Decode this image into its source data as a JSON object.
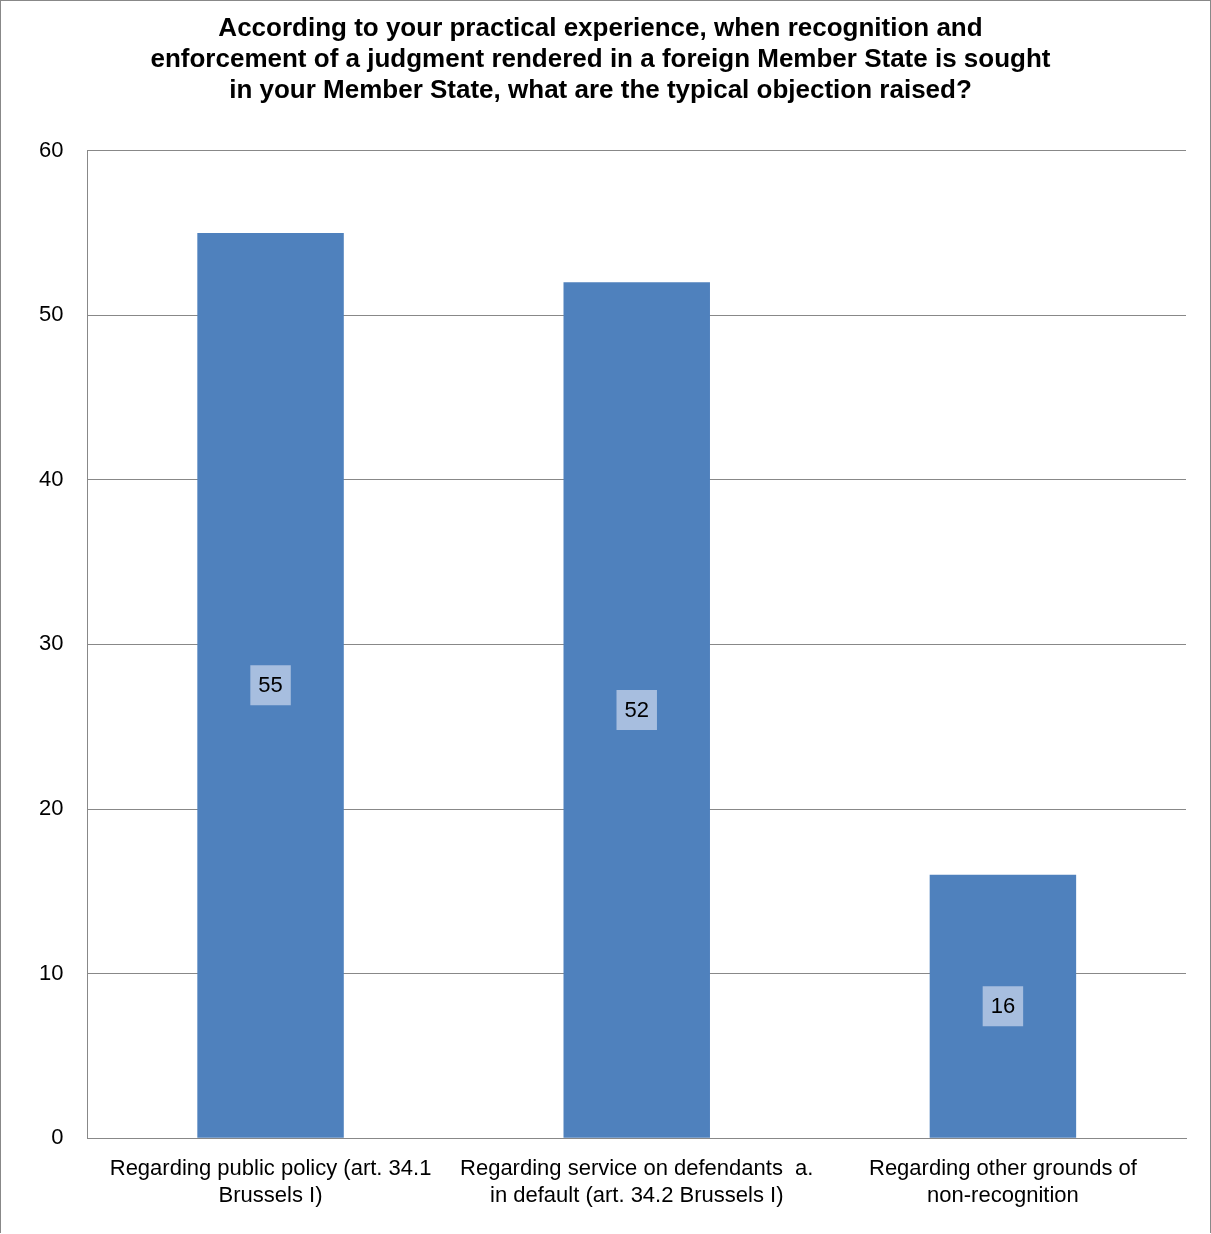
{
  "chart_data": {
    "type": "bar",
    "title": "According to your practical experience, when recognition and enforcement of a judgment rendered in a foreign Member State is sought in your Member State, what are the typical objection raised?",
    "categories": [
      "Regarding public policy (art. 34.1 Brussels I)",
      "Regarding service on defendants  a. in default (art. 34.2 Brussels I)",
      "Regarding other grounds of non-recognition"
    ],
    "values": [
      55,
      52,
      16
    ],
    "color": "#4f81bd",
    "ylim": [
      0,
      60
    ],
    "yticks": [
      0,
      10,
      20,
      30,
      40,
      50,
      60
    ],
    "grid": "y",
    "data_labels": true,
    "legend": false
  }
}
